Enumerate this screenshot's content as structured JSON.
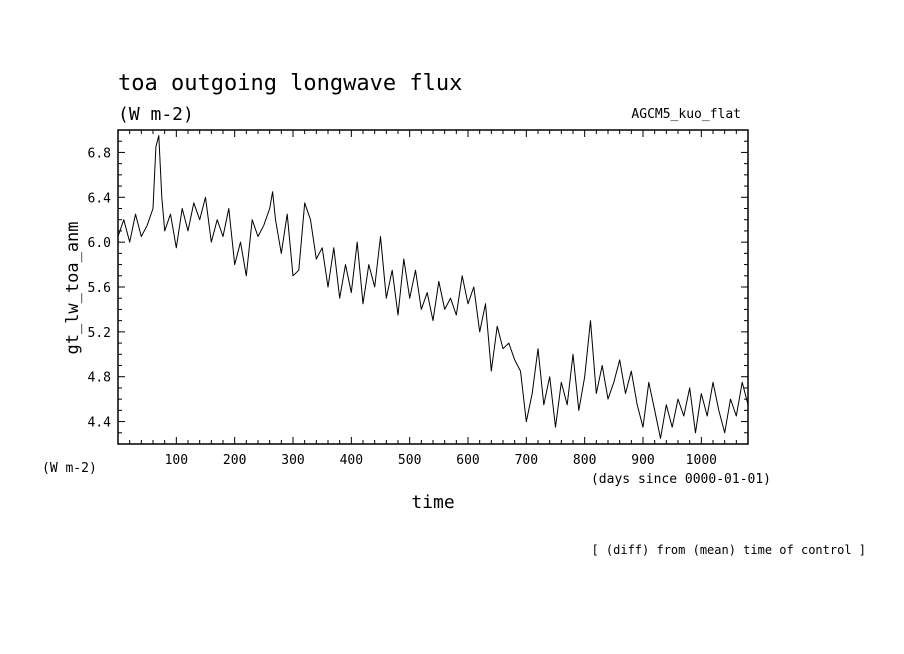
{
  "chart_data": {
    "type": "line",
    "title": "toa outgoing longwave flux",
    "units_top": "(W m-2)",
    "model_label": "AGCM5_kuo_flat",
    "ylabel": "gt_lw_toa_anm",
    "units_left": "(W m-2)",
    "xlabel": "time",
    "xunits": "(days since 0000-01-01)",
    "footnote": "[ (diff) from (mean) time of control ]",
    "xlim": [
      0,
      1080
    ],
    "ylim": [
      4.2,
      7.0
    ],
    "xticks": [
      100,
      200,
      300,
      400,
      500,
      600,
      700,
      800,
      900,
      1000
    ],
    "xtick_labels": [
      "100",
      "200",
      "300",
      "400",
      "500",
      "600",
      "700",
      "800",
      "900",
      "1000"
    ],
    "yticks": [
      4.4,
      4.8,
      5.2,
      5.6,
      6.0,
      6.4,
      6.8
    ],
    "ytick_labels": [
      "4.4",
      "4.8",
      "5.2",
      "5.6",
      "6.0",
      "6.4",
      "6.8"
    ],
    "grid": false,
    "series": [
      {
        "color": "#000000",
        "x": [
          0,
          10,
          20,
          30,
          40,
          50,
          60,
          65,
          70,
          75,
          80,
          90,
          100,
          110,
          120,
          130,
          140,
          150,
          160,
          170,
          180,
          190,
          200,
          210,
          220,
          230,
          240,
          250,
          260,
          265,
          270,
          280,
          290,
          300,
          310,
          320,
          330,
          340,
          350,
          360,
          370,
          380,
          390,
          400,
          410,
          420,
          430,
          440,
          450,
          460,
          470,
          480,
          490,
          500,
          510,
          520,
          530,
          540,
          550,
          560,
          570,
          580,
          590,
          600,
          610,
          620,
          630,
          640,
          650,
          660,
          670,
          680,
          690,
          700,
          710,
          720,
          730,
          740,
          750,
          760,
          770,
          780,
          790,
          800,
          810,
          820,
          830,
          840,
          850,
          860,
          870,
          880,
          890,
          900,
          910,
          920,
          930,
          940,
          950,
          960,
          970,
          980,
          990,
          1000,
          1010,
          1020,
          1030,
          1040,
          1050,
          1060,
          1070,
          1080
        ],
        "y": [
          6.05,
          6.2,
          6.0,
          6.25,
          6.05,
          6.15,
          6.3,
          6.85,
          6.95,
          6.4,
          6.1,
          6.25,
          5.95,
          6.3,
          6.1,
          6.35,
          6.2,
          6.4,
          6.0,
          6.2,
          6.05,
          6.3,
          5.8,
          6.0,
          5.7,
          6.2,
          6.05,
          6.15,
          6.3,
          6.45,
          6.2,
          5.9,
          6.25,
          5.7,
          5.75,
          6.35,
          6.2,
          5.85,
          5.95,
          5.6,
          5.95,
          5.5,
          5.8,
          5.55,
          6.0,
          5.45,
          5.8,
          5.6,
          6.05,
          5.5,
          5.75,
          5.35,
          5.85,
          5.5,
          5.75,
          5.4,
          5.55,
          5.3,
          5.65,
          5.4,
          5.5,
          5.35,
          5.7,
          5.45,
          5.6,
          5.2,
          5.45,
          4.85,
          5.25,
          5.05,
          5.1,
          4.95,
          4.85,
          4.4,
          4.65,
          5.05,
          4.55,
          4.8,
          4.35,
          4.75,
          4.55,
          5.0,
          4.5,
          4.8,
          5.3,
          4.65,
          4.9,
          4.6,
          4.75,
          4.95,
          4.65,
          4.85,
          4.55,
          4.35,
          4.75,
          4.5,
          4.25,
          4.55,
          4.35,
          4.6,
          4.45,
          4.7,
          4.3,
          4.65,
          4.45,
          4.75,
          4.5,
          4.3,
          4.6,
          4.45,
          4.75,
          4.55
        ]
      }
    ]
  }
}
